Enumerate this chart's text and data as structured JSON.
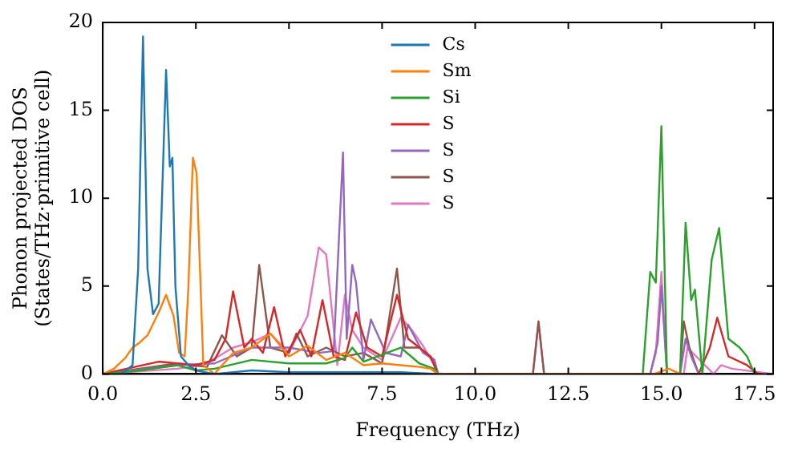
{
  "chart_data": {
    "type": "line",
    "xlabel": "Frequency (THz)",
    "ylabel": "Phonon projected DOS\n(States/THz·primitive cell)",
    "xlim": [
      0,
      18
    ],
    "xticks": [
      {
        "value": 0,
        "label": "0.0"
      },
      {
        "value": 2.5,
        "label": "2.5"
      },
      {
        "value": 5,
        "label": "5.0"
      },
      {
        "value": 7.5,
        "label": "7.5"
      },
      {
        "value": 10,
        "label": "10.0"
      },
      {
        "value": 12.5,
        "label": "12.5"
      },
      {
        "value": 15,
        "label": "15.0"
      },
      {
        "value": 17.5,
        "label": "17.5"
      }
    ],
    "ylim": [
      0,
      20
    ],
    "yticks": [
      0,
      5,
      10,
      15,
      20
    ],
    "grid": false,
    "legend": "top",
    "marker": "none",
    "line_style": "solid",
    "series": [
      {
        "name": "Cs",
        "color": "#1f77b4",
        "x": [
          0.5,
          0.8,
          0.95,
          1.08,
          1.2,
          1.35,
          1.5,
          1.7,
          1.8,
          1.87,
          1.95,
          2.1,
          2.3,
          2.5,
          3.0,
          4.0,
          5.0,
          6.0,
          8.0,
          9.0
        ],
        "values": [
          0,
          0.5,
          6,
          19.2,
          6,
          3.4,
          4,
          17.3,
          11.8,
          12.3,
          5,
          1,
          0.5,
          0.2,
          0,
          0.2,
          0.1,
          0.1,
          0.1,
          0
        ]
      },
      {
        "name": "Sm",
        "color": "#ff7f0e",
        "x": [
          0,
          0.3,
          0.6,
          0.8,
          1.0,
          1.2,
          1.5,
          1.7,
          1.9,
          2.05,
          2.2,
          2.3,
          2.42,
          2.52,
          2.7,
          3.0,
          3.5,
          4.0,
          4.5,
          5.0,
          5.5,
          6.0,
          6.5,
          7.0,
          7.5,
          8.0,
          8.5,
          8.8,
          9.0,
          14.8,
          15.2,
          15.5
        ],
        "values": [
          0,
          0.3,
          0.9,
          1.5,
          1.8,
          2.2,
          3.5,
          4.5,
          3.3,
          1.2,
          1.0,
          5,
          12.3,
          11.4,
          0.5,
          0,
          1.2,
          1.5,
          2.3,
          1.0,
          1.6,
          0.8,
          1.2,
          0.5,
          0.6,
          0.5,
          0.4,
          0.3,
          0,
          0,
          0.3,
          0
        ]
      },
      {
        "name": "Si",
        "color": "#2ca02c",
        "x": [
          0,
          1,
          2,
          2.5,
          3,
          4,
          5,
          6,
          6.5,
          6.7,
          7,
          8,
          8.5,
          8.9,
          9,
          14.5,
          14.7,
          14.85,
          15.0,
          15.15,
          15.5,
          15.65,
          15.8,
          15.9,
          16.1,
          16.35,
          16.55,
          16.8,
          17.1,
          17.3,
          17.5
        ],
        "values": [
          0,
          0.2,
          0.5,
          0.2,
          0.3,
          0.8,
          0.6,
          0.6,
          0.9,
          1.5,
          0.7,
          1.5,
          0.6,
          0.3,
          0,
          0,
          5.8,
          5.2,
          14.1,
          0,
          0,
          8.6,
          4.2,
          4.8,
          0,
          6.5,
          8.3,
          2,
          1.5,
          1,
          0
        ]
      },
      {
        "name": "S",
        "color": "#d62728",
        "x": [
          0,
          1.5,
          2.5,
          3.0,
          3.3,
          3.5,
          3.8,
          4.0,
          4.3,
          4.6,
          4.9,
          5.3,
          5.6,
          5.9,
          6.2,
          6.5,
          6.8,
          7.1,
          7.5,
          7.9,
          8.2,
          8.5,
          8.8,
          9,
          16,
          16.3,
          16.5,
          16.8,
          17.3,
          17.6
        ],
        "values": [
          0,
          0.7,
          0.5,
          0.8,
          2.0,
          4.7,
          1.5,
          2.0,
          1.2,
          3.8,
          1.0,
          2.5,
          1.0,
          4.2,
          1.0,
          0.8,
          3.5,
          1.5,
          1.0,
          4.5,
          2.0,
          1.5,
          1.0,
          0,
          0,
          1.5,
          3.2,
          1.0,
          0.5,
          0
        ]
      },
      {
        "name": "S",
        "color": "#9467bd",
        "x": [
          0,
          2,
          3,
          4,
          5,
          5.8,
          6.2,
          6.45,
          6.55,
          6.7,
          6.8,
          7.0,
          7.2,
          7.6,
          8.0,
          8.2,
          8.6,
          8.9,
          9,
          14.7,
          14.9,
          15.0,
          15.15,
          15.5,
          15.65,
          15.8,
          16.0
        ],
        "values": [
          0,
          0.5,
          0.6,
          1.5,
          1.5,
          1.2,
          1.3,
          12.6,
          2,
          6.2,
          5.2,
          0.8,
          3.1,
          1.2,
          1.0,
          2.8,
          1.2,
          0.8,
          0,
          0,
          1.8,
          5,
          0,
          0,
          2,
          1,
          0
        ]
      },
      {
        "name": "S",
        "color": "#8c564b",
        "x": [
          0,
          2,
          2.8,
          3.2,
          3.6,
          4.0,
          4.2,
          4.5,
          5.0,
          5.2,
          5.5,
          6.0,
          6.5,
          7.0,
          7.5,
          7.9,
          8.1,
          8.5,
          8.9,
          9,
          11.55,
          11.7,
          11.85,
          15.5,
          15.6,
          15.75,
          16.0
        ],
        "values": [
          0,
          0.6,
          0.4,
          2.2,
          1.0,
          1.5,
          6.2,
          1.5,
          1.2,
          2.3,
          1.0,
          1.5,
          1.0,
          1.2,
          0.6,
          6.0,
          1.5,
          1.5,
          0.8,
          0,
          0,
          3,
          0,
          0,
          3,
          1.5,
          0
        ]
      },
      {
        "name": "S",
        "color": "#e377c2",
        "x": [
          0,
          2,
          2.7,
          3.1,
          3.5,
          4.0,
          4.5,
          5.0,
          5.5,
          5.8,
          6.0,
          6.3,
          6.5,
          6.7,
          7.0,
          7.5,
          8.0,
          8.3,
          8.6,
          8.9,
          9,
          11.55,
          11.7,
          11.85,
          14.7,
          14.85,
          15.0,
          15.15,
          15.6,
          15.7,
          16.4,
          16.6,
          16.9,
          18
        ],
        "values": [
          0,
          0.3,
          0.5,
          1.0,
          1.5,
          1.8,
          2.3,
          1.2,
          3.3,
          7.2,
          6.8,
          0.5,
          4.5,
          2.5,
          1.5,
          0.8,
          3.2,
          2.5,
          1.6,
          0.5,
          0,
          0,
          2.9,
          0,
          0,
          1.2,
          5.8,
          0,
          0,
          1.5,
          0,
          0.5,
          0.3,
          0
        ]
      }
    ]
  }
}
